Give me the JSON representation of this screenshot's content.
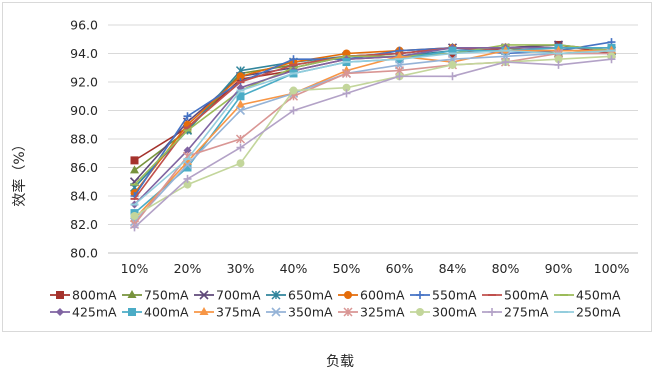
{
  "chart_data": {
    "type": "line",
    "title": "",
    "xlabel": "负载",
    "ylabel": "效率（%）",
    "ylim": [
      80.0,
      96.0
    ],
    "yticks": [
      "80.0",
      "82.0",
      "84.0",
      "86.0",
      "88.0",
      "90.0",
      "92.0",
      "94.0",
      "96.0"
    ],
    "categories": [
      "10%",
      "20%",
      "30%",
      "40%",
      "50%",
      "60%",
      "84%",
      "80%",
      "90%",
      "100%"
    ],
    "grid": "horizontal",
    "legend_position": "bottom",
    "series": [
      {
        "name": "800mA",
        "color": "#a5322c",
        "marker": "square",
        "values": [
          86.5,
          88.8,
          92.2,
          92.8,
          93.6,
          93.8,
          94.0,
          94.4,
          94.6,
          94.0
        ]
      },
      {
        "name": "750mA",
        "color": "#77933c",
        "marker": "triangle",
        "values": [
          85.8,
          88.6,
          92.6,
          93.2,
          93.8,
          94.0,
          94.4,
          94.4,
          94.0,
          94.2
        ]
      },
      {
        "name": "700mA",
        "color": "#5f497a",
        "marker": "x",
        "values": [
          85.0,
          89.2,
          92.4,
          93.0,
          93.8,
          94.0,
          94.4,
          94.4,
          94.6,
          94.2
        ]
      },
      {
        "name": "650mA",
        "color": "#31859c",
        "marker": "asterisk",
        "values": [
          84.6,
          88.6,
          92.8,
          93.4,
          93.8,
          93.8,
          94.2,
          94.2,
          94.2,
          94.2
        ]
      },
      {
        "name": "600mA",
        "color": "#e46c0a",
        "marker": "circle",
        "values": [
          84.2,
          89.0,
          92.4,
          93.4,
          94.0,
          94.2,
          94.4,
          94.4,
          94.4,
          94.4
        ]
      },
      {
        "name": "550mA",
        "color": "#4472c4",
        "marker": "plus",
        "values": [
          84.0,
          89.6,
          92.0,
          93.6,
          93.6,
          94.2,
          94.4,
          94.0,
          94.2,
          94.8
        ]
      },
      {
        "name": "500mA",
        "color": "#c0504d",
        "marker": "dash",
        "values": [
          83.8,
          88.8,
          92.0,
          93.2,
          93.8,
          94.0,
          94.4,
          94.2,
          94.2,
          94.2
        ]
      },
      {
        "name": "450mA",
        "color": "#9bbb59",
        "marker": "dash",
        "values": [
          84.8,
          88.6,
          91.4,
          93.0,
          93.8,
          93.8,
          94.0,
          94.6,
          94.6,
          94.2
        ]
      },
      {
        "name": "425mA",
        "color": "#8064a2",
        "marker": "diamond",
        "values": [
          83.4,
          87.2,
          91.6,
          92.8,
          93.6,
          93.8,
          94.4,
          94.4,
          94.4,
          94.4
        ]
      },
      {
        "name": "400mA",
        "color": "#4bacc6",
        "marker": "square",
        "values": [
          82.8,
          86.0,
          91.0,
          92.6,
          93.4,
          93.6,
          94.2,
          94.2,
          94.4,
          94.4
        ]
      },
      {
        "name": "375mA",
        "color": "#f79646",
        "marker": "triangle",
        "values": [
          82.4,
          86.4,
          90.4,
          91.2,
          92.8,
          93.8,
          93.4,
          94.2,
          94.2,
          94.2
        ]
      },
      {
        "name": "350mA",
        "color": "#95b3d7",
        "marker": "x",
        "values": [
          82.2,
          86.2,
          90.0,
          91.2,
          92.6,
          93.2,
          93.6,
          93.8,
          94.0,
          94.0
        ]
      },
      {
        "name": "325mA",
        "color": "#d99694",
        "marker": "asterisk",
        "values": [
          82.0,
          86.8,
          88.0,
          91.0,
          92.6,
          92.8,
          93.2,
          93.4,
          94.0,
          94.0
        ]
      },
      {
        "name": "300mA",
        "color": "#c3d69b",
        "marker": "circle",
        "values": [
          82.6,
          84.8,
          86.3,
          91.4,
          91.6,
          92.4,
          93.2,
          93.4,
          93.6,
          93.8
        ]
      },
      {
        "name": "275mA",
        "color": "#b3a2c7",
        "marker": "plus",
        "values": [
          81.8,
          85.2,
          87.4,
          90.0,
          91.2,
          92.4,
          92.4,
          93.4,
          93.2,
          93.6
        ]
      },
      {
        "name": "250mA",
        "color": "#93cddd",
        "marker": "dash",
        "values": [
          83.4,
          86.6,
          91.4,
          92.6,
          93.4,
          93.6,
          94.0,
          94.2,
          94.0,
          94.2
        ]
      }
    ]
  }
}
